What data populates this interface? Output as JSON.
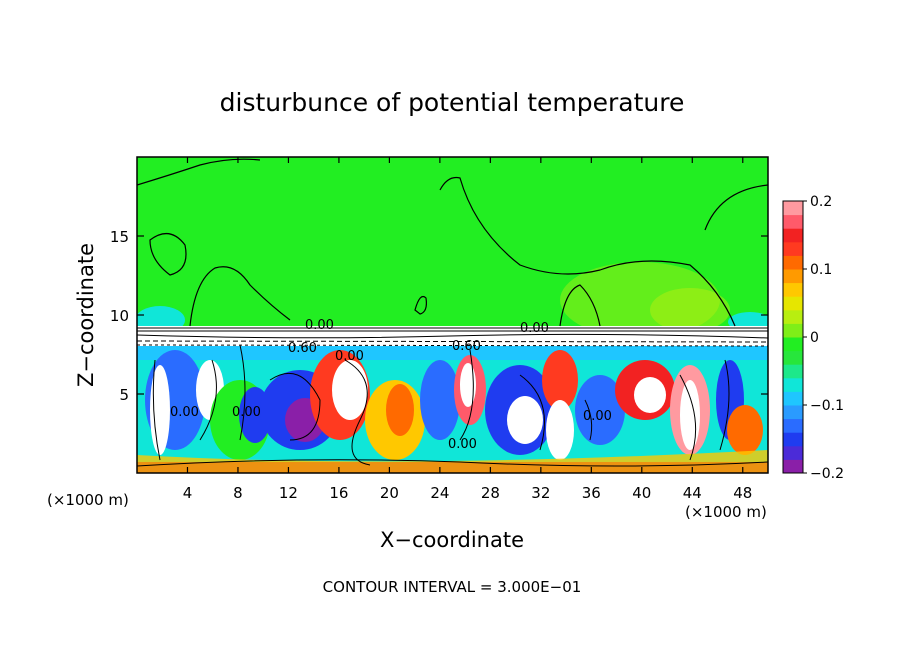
{
  "chart_data": {
    "type": "heatmap",
    "title": "disturbunce of potential temperature",
    "xlabel": "X−coordinate",
    "ylabel": "Z−coordinate",
    "x_unit_left": "(×1000 m)",
    "x_unit_right": "(×1000 m)",
    "footer": "CONTOUR INTERVAL = 3.000E−01",
    "xlim": [
      0,
      50
    ],
    "ylim": [
      0,
      20
    ],
    "x_ticks": [
      4,
      8,
      12,
      16,
      20,
      24,
      28,
      32,
      36,
      40,
      44,
      48
    ],
    "y_ticks": [
      5,
      10,
      15
    ],
    "colorbar": {
      "min": -0.2,
      "max": 0.2,
      "tick_labels": [
        "0.2",
        "0.1",
        "0",
        "−0.1",
        "−0.2"
      ],
      "tick_values": [
        0.2,
        0.1,
        0,
        -0.1,
        -0.2
      ],
      "colors": [
        "#8a1fa8",
        "#4b2bd8",
        "#1f3cf0",
        "#2a6cff",
        "#2a9bff",
        "#1fc6ff",
        "#10e6d8",
        "#1de88a",
        "#27e63c",
        "#22ee22",
        "#7fee18",
        "#b8ee10",
        "#e6e600",
        "#ffc800",
        "#ff9a00",
        "#ff6a00",
        "#ff3a20",
        "#f22222",
        "#ff5a6a",
        "#ff9aa0"
      ]
    },
    "contour_labels": [
      "0.00",
      "0.00",
      "0.00",
      "0.00",
      "0.00",
      "0.00",
      "0.00",
      "0.60",
      "0.60"
    ],
    "background_value": 0
  }
}
